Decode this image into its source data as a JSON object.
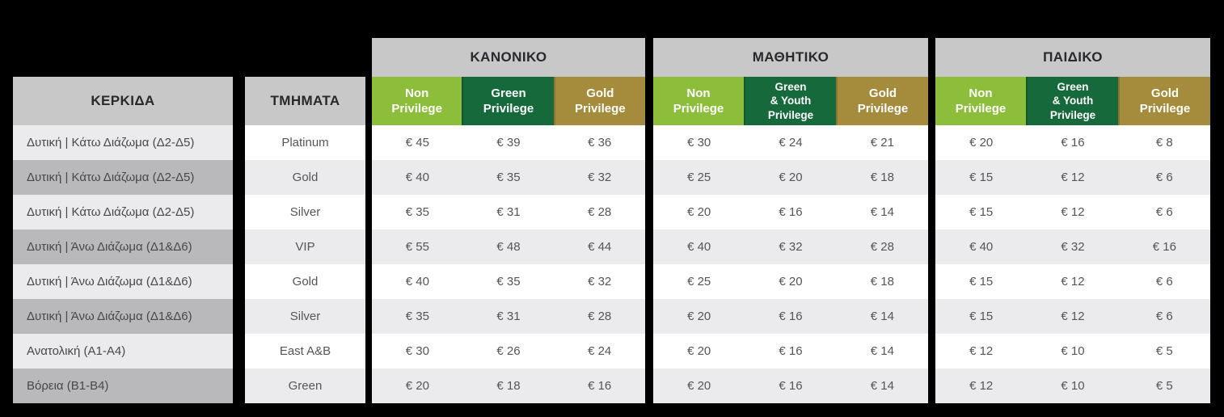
{
  "colors": {
    "non_privilege": "#8CBE3C",
    "green_privilege": "#15693A",
    "gold_privilege": "#A58C3D",
    "header_gray": "#C8C8C9"
  },
  "chart_data": {
    "type": "table",
    "stand_header": "ΚΕΡΚΙΔΑ",
    "section_header": "ΤΜΗΜΑΤΑ",
    "stands": [
      "Δυτική | Κάτω Διάζωμα (Δ2-Δ5)",
      "Δυτική | Κάτω Διάζωμα (Δ2-Δ5)",
      "Δυτική | Κάτω Διάζωμα (Δ2-Δ5)",
      "Δυτική | Άνω Διάζωμα (Δ1&Δ6)",
      "Δυτική | Άνω Διάζωμα (Δ1&Δ6)",
      "Δυτική | Άνω Διάζωμα (Δ1&Δ6)",
      "Ανατολική (Α1-Α4)",
      "Βόρεια (Β1-Β4)"
    ],
    "sections": [
      "Platinum",
      "Gold",
      "Silver",
      "VIP",
      "Gold",
      "Silver",
      "East A&B",
      "Green"
    ],
    "groups": [
      {
        "title": "ΚΑΝΟΝΙΚΟ",
        "columns": [
          "Non\nPrivilege",
          "Green\nPrivilege",
          "Gold\nPrivilege"
        ],
        "prices": [
          [
            "€ 45",
            "€ 39",
            "€ 36"
          ],
          [
            "€ 40",
            "€ 35",
            "€ 32"
          ],
          [
            "€ 35",
            "€ 31",
            "€ 28"
          ],
          [
            "€ 55",
            "€ 48",
            "€ 44"
          ],
          [
            "€ 40",
            "€ 35",
            "€ 32"
          ],
          [
            "€ 35",
            "€ 31",
            "€ 28"
          ],
          [
            "€ 30",
            "€ 26",
            "€ 24"
          ],
          [
            "€ 20",
            "€ 18",
            "€ 16"
          ]
        ]
      },
      {
        "title": "ΜΑΘΗΤΙΚΟ",
        "columns": [
          "Non\nPrivilege",
          "Green\n& Youth\nPrivilege",
          "Gold\nPrivilege"
        ],
        "prices": [
          [
            "€ 30",
            "€ 24",
            "€ 21"
          ],
          [
            "€ 25",
            "€ 20",
            "€ 18"
          ],
          [
            "€ 20",
            "€ 16",
            "€ 14"
          ],
          [
            "€ 40",
            "€ 32",
            "€ 28"
          ],
          [
            "€ 25",
            "€ 20",
            "€ 18"
          ],
          [
            "€ 20",
            "€ 16",
            "€ 14"
          ],
          [
            "€ 20",
            "€ 16",
            "€ 14"
          ],
          [
            "€ 20",
            "€ 16",
            "€ 14"
          ]
        ]
      },
      {
        "title": "ΠΑΙΔΙΚΟ",
        "columns": [
          "Non\nPrivilege",
          "Green\n& Youth\nPrivilege",
          "Gold\nPrivilege"
        ],
        "prices": [
          [
            "€ 20",
            "€ 16",
            "€ 8"
          ],
          [
            "€ 15",
            "€ 12",
            "€ 6"
          ],
          [
            "€ 15",
            "€ 12",
            "€ 6"
          ],
          [
            "€ 40",
            "€ 32",
            "€ 16"
          ],
          [
            "€ 15",
            "€ 12",
            "€ 6"
          ],
          [
            "€ 15",
            "€ 12",
            "€ 6"
          ],
          [
            "€ 12",
            "€ 10",
            "€ 5"
          ],
          [
            "€ 12",
            "€ 10",
            "€ 5"
          ]
        ]
      }
    ]
  }
}
